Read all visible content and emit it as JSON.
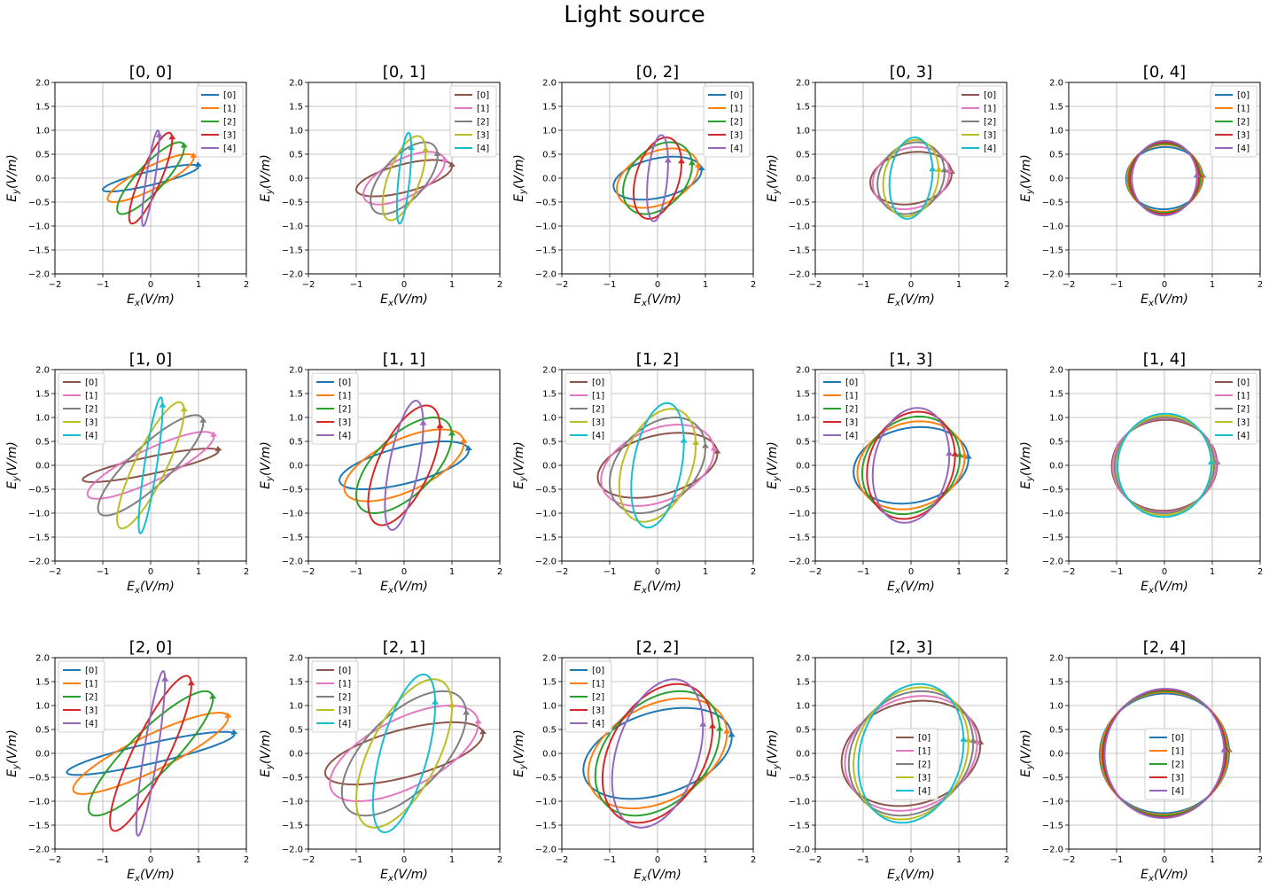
{
  "figure": {
    "suptitle": "Light source",
    "xlabel_base": "E",
    "xlabel_sub": "x",
    "xlabel_unit": "(V/m)",
    "ylabel_base": "E",
    "ylabel_sub": "y",
    "ylabel_unit": "(V/m)"
  },
  "colors": {
    "[0]": "#1f77b4",
    "[1]": "#ff7f0e",
    "[2]": "#2ca02c",
    "[3]": "#d62728",
    "[4]": "#9467bd",
    "alt[0]": "#8c564b",
    "alt[1]": "#e377c2",
    "alt[2]": "#7f7f7f",
    "alt[3]": "#bcbd22",
    "alt[4]": "#17becf"
  },
  "chart_data": [
    {
      "type": "line",
      "title": "[0, 0]",
      "xlabel": "E_x(V/m)",
      "ylabel": "E_y(V/m)",
      "xlim": [
        -2,
        2
      ],
      "ylim": [
        -2,
        2
      ],
      "xticks": [
        -2,
        -1,
        0,
        1,
        2
      ],
      "yticks": [
        "2.0",
        "1.5",
        "1.0",
        "0.5",
        "0.0",
        "-0.5",
        "-1.0",
        "-1.5",
        "-2.0"
      ],
      "grid": true,
      "legend": "upper right",
      "palette": "default",
      "series": [
        {
          "name": "[0]",
          "ax": 1.0,
          "ay": 0.28,
          "delta": 0.55
        },
        {
          "name": "[1]",
          "ax": 0.9,
          "ay": 0.5,
          "delta": 0.55
        },
        {
          "name": "[2]",
          "ax": 0.7,
          "ay": 0.75,
          "delta": 0.55
        },
        {
          "name": "[3]",
          "ax": 0.45,
          "ay": 0.95,
          "delta": 0.55
        },
        {
          "name": "[4]",
          "ax": 0.18,
          "ay": 1.0,
          "delta": 0.55
        }
      ]
    },
    {
      "type": "line",
      "title": "[0, 1]",
      "xlabel": "E_x(V/m)",
      "ylabel": "E_y(V/m)",
      "xlim": [
        -2,
        2
      ],
      "ylim": [
        -2,
        2
      ],
      "xticks": [
        -2,
        -1,
        0,
        1,
        2
      ],
      "yticks": [
        "2.0",
        "1.5",
        "1.0",
        "0.5",
        "0.0",
        "-0.5",
        "-1.0",
        "-1.5",
        "-2.0"
      ],
      "grid": true,
      "legend": "upper right",
      "palette": "alt",
      "series": [
        {
          "name": "[0]",
          "ax": 1.0,
          "ay": 0.38,
          "delta": 0.9
        },
        {
          "name": "[1]",
          "ax": 0.85,
          "ay": 0.55,
          "delta": 0.9
        },
        {
          "name": "[2]",
          "ax": 0.7,
          "ay": 0.75,
          "delta": 0.9
        },
        {
          "name": "[3]",
          "ax": 0.45,
          "ay": 0.88,
          "delta": 0.9
        },
        {
          "name": "[4]",
          "ax": 0.15,
          "ay": 0.95,
          "delta": 0.9
        }
      ]
    },
    {
      "type": "line",
      "title": "[0, 2]",
      "xlabel": "E_x(V/m)",
      "ylabel": "E_y(V/m)",
      "xlim": [
        -2,
        2
      ],
      "ylim": [
        -2,
        2
      ],
      "xticks": [
        -2,
        -1,
        0,
        1,
        2
      ],
      "yticks": [
        "2.0",
        "1.5",
        "1.0",
        "0.5",
        "0.0",
        "-0.5",
        "-1.0",
        "-1.5",
        "-2.0"
      ],
      "grid": true,
      "legend": "upper right",
      "palette": "default",
      "series": [
        {
          "name": "[0]",
          "ax": 0.92,
          "ay": 0.45,
          "delta": 1.2
        },
        {
          "name": "[1]",
          "ax": 0.85,
          "ay": 0.62,
          "delta": 1.2
        },
        {
          "name": "[2]",
          "ax": 0.72,
          "ay": 0.75,
          "delta": 1.2
        },
        {
          "name": "[3]",
          "ax": 0.5,
          "ay": 0.85,
          "delta": 1.2
        },
        {
          "name": "[4]",
          "ax": 0.22,
          "ay": 0.9,
          "delta": 1.2
        }
      ]
    },
    {
      "type": "line",
      "title": "[0, 3]",
      "xlabel": "E_x(V/m)",
      "ylabel": "E_y(V/m)",
      "xlim": [
        -2,
        2
      ],
      "ylim": [
        -2,
        2
      ],
      "xticks": [
        -2,
        -1,
        0,
        1,
        2
      ],
      "yticks": [
        "2.0",
        "1.5",
        "1.0",
        "0.5",
        "0.0",
        "-0.5",
        "-1.0",
        "-1.5",
        "-2.0"
      ],
      "grid": true,
      "legend": "upper right",
      "palette": "alt",
      "series": [
        {
          "name": "[0]",
          "ax": 0.85,
          "ay": 0.55,
          "delta": 1.4
        },
        {
          "name": "[1]",
          "ax": 0.8,
          "ay": 0.65,
          "delta": 1.4
        },
        {
          "name": "[2]",
          "ax": 0.7,
          "ay": 0.75,
          "delta": 1.4
        },
        {
          "name": "[3]",
          "ax": 0.58,
          "ay": 0.8,
          "delta": 1.4
        },
        {
          "name": "[4]",
          "ax": 0.45,
          "ay": 0.85,
          "delta": 1.4
        }
      ]
    },
    {
      "type": "line",
      "title": "[0, 4]",
      "xlabel": "E_x(V/m)",
      "ylabel": "E_y(V/m)",
      "xlim": [
        -2,
        2
      ],
      "ylim": [
        -2,
        2
      ],
      "xticks": [
        -2,
        -1,
        0,
        1,
        2
      ],
      "yticks": [
        "2.0",
        "1.5",
        "1.0",
        "0.5",
        "0.0",
        "-0.5",
        "-1.0",
        "-1.5",
        "-2.0"
      ],
      "grid": true,
      "legend": "upper right",
      "palette": "default",
      "series": [
        {
          "name": "[0]",
          "ax": 0.8,
          "ay": 0.65,
          "delta": 1.55
        },
        {
          "name": "[1]",
          "ax": 0.78,
          "ay": 0.7,
          "delta": 1.55
        },
        {
          "name": "[2]",
          "ax": 0.75,
          "ay": 0.72,
          "delta": 1.55
        },
        {
          "name": "[3]",
          "ax": 0.72,
          "ay": 0.75,
          "delta": 1.55
        },
        {
          "name": "[4]",
          "ax": 0.68,
          "ay": 0.78,
          "delta": 1.55
        }
      ]
    },
    {
      "type": "line",
      "title": "[1, 0]",
      "xlabel": "E_x(V/m)",
      "ylabel": "E_y(V/m)",
      "xlim": [
        -2,
        2
      ],
      "ylim": [
        -2,
        2
      ],
      "xticks": [
        -2,
        -1,
        0,
        1,
        2
      ],
      "yticks": [
        "2.0",
        "1.5",
        "1.0",
        "0.5",
        "0.0",
        "-0.5",
        "-1.0",
        "-1.5",
        "-2.0"
      ],
      "grid": true,
      "legend": "upper left",
      "palette": "alt",
      "series": [
        {
          "name": "[0]",
          "ax": 1.42,
          "ay": 0.35,
          "delta": 0.55
        },
        {
          "name": "[1]",
          "ax": 1.32,
          "ay": 0.7,
          "delta": 0.55
        },
        {
          "name": "[2]",
          "ax": 1.1,
          "ay": 1.05,
          "delta": 0.55
        },
        {
          "name": "[3]",
          "ax": 0.7,
          "ay": 1.32,
          "delta": 0.55
        },
        {
          "name": "[4]",
          "ax": 0.25,
          "ay": 1.42,
          "delta": 0.55
        }
      ]
    },
    {
      "type": "line",
      "title": "[1, 1]",
      "xlabel": "E_x(V/m)",
      "ylabel": "E_y(V/m)",
      "xlim": [
        -2,
        2
      ],
      "ylim": [
        -2,
        2
      ],
      "xticks": [
        -2,
        -1,
        0,
        1,
        2
      ],
      "yticks": [
        "2.0",
        "1.5",
        "1.0",
        "0.5",
        "0.0",
        "-0.5",
        "-1.0",
        "-1.5",
        "-2.0"
      ],
      "grid": true,
      "legend": "upper left",
      "palette": "default",
      "series": [
        {
          "name": "[0]",
          "ax": 1.35,
          "ay": 0.5,
          "delta": 0.9
        },
        {
          "name": "[1]",
          "ax": 1.25,
          "ay": 0.75,
          "delta": 0.9
        },
        {
          "name": "[2]",
          "ax": 1.0,
          "ay": 1.0,
          "delta": 0.9
        },
        {
          "name": "[3]",
          "ax": 0.75,
          "ay": 1.25,
          "delta": 0.9
        },
        {
          "name": "[4]",
          "ax": 0.4,
          "ay": 1.35,
          "delta": 0.9
        }
      ]
    },
    {
      "type": "line",
      "title": "[1, 2]",
      "xlabel": "E_x(V/m)",
      "ylabel": "E_y(V/m)",
      "xlim": [
        -2,
        2
      ],
      "ylim": [
        -2,
        2
      ],
      "xticks": [
        -2,
        -1,
        0,
        1,
        2
      ],
      "yticks": [
        "2.0",
        "1.5",
        "1.0",
        "0.5",
        "0.0",
        "-0.5",
        "-1.0",
        "-1.5",
        "-2.0"
      ],
      "grid": true,
      "legend": "upper left",
      "palette": "alt",
      "series": [
        {
          "name": "[0]",
          "ax": 1.25,
          "ay": 0.68,
          "delta": 1.2
        },
        {
          "name": "[1]",
          "ax": 1.18,
          "ay": 0.85,
          "delta": 1.2
        },
        {
          "name": "[2]",
          "ax": 1.0,
          "ay": 1.0,
          "delta": 1.2
        },
        {
          "name": "[3]",
          "ax": 0.8,
          "ay": 1.18,
          "delta": 1.2
        },
        {
          "name": "[4]",
          "ax": 0.55,
          "ay": 1.3,
          "delta": 1.2
        }
      ]
    },
    {
      "type": "line",
      "title": "[1, 3]",
      "xlabel": "E_x(V/m)",
      "ylabel": "E_y(V/m)",
      "xlim": [
        -2,
        2
      ],
      "ylim": [
        -2,
        2
      ],
      "xticks": [
        -2,
        -1,
        0,
        1,
        2
      ],
      "yticks": [
        "2.0",
        "1.5",
        "1.0",
        "0.5",
        "0.0",
        "-0.5",
        "-1.0",
        "-1.5",
        "-2.0"
      ],
      "grid": true,
      "legend": "upper left",
      "palette": "default",
      "series": [
        {
          "name": "[0]",
          "ax": 1.2,
          "ay": 0.8,
          "delta": 1.4
        },
        {
          "name": "[1]",
          "ax": 1.12,
          "ay": 0.92,
          "delta": 1.4
        },
        {
          "name": "[2]",
          "ax": 1.02,
          "ay": 1.02,
          "delta": 1.4
        },
        {
          "name": "[3]",
          "ax": 0.92,
          "ay": 1.12,
          "delta": 1.4
        },
        {
          "name": "[4]",
          "ax": 0.8,
          "ay": 1.2,
          "delta": 1.4
        }
      ]
    },
    {
      "type": "line",
      "title": "[1, 4]",
      "xlabel": "E_x(V/m)",
      "ylabel": "E_y(V/m)",
      "xlim": [
        -2,
        2
      ],
      "ylim": [
        -2,
        2
      ],
      "xticks": [
        -2,
        -1,
        0,
        1,
        2
      ],
      "yticks": [
        "2.0",
        "1.5",
        "1.0",
        "0.5",
        "0.0",
        "-0.5",
        "-1.0",
        "-1.5",
        "-2.0"
      ],
      "grid": true,
      "legend": "upper right",
      "palette": "alt",
      "series": [
        {
          "name": "[0]",
          "ax": 1.1,
          "ay": 0.95,
          "delta": 1.55
        },
        {
          "name": "[1]",
          "ax": 1.08,
          "ay": 0.98,
          "delta": 1.55
        },
        {
          "name": "[2]",
          "ax": 1.04,
          "ay": 1.0,
          "delta": 1.55
        },
        {
          "name": "[3]",
          "ax": 1.0,
          "ay": 1.04,
          "delta": 1.55
        },
        {
          "name": "[4]",
          "ax": 0.98,
          "ay": 1.08,
          "delta": 1.55
        }
      ]
    },
    {
      "type": "line",
      "title": "[2, 0]",
      "xlabel": "E_x(V/m)",
      "ylabel": "E_y(V/m)",
      "xlim": [
        -2,
        2
      ],
      "ylim": [
        -2,
        2
      ],
      "xticks": [
        -2,
        -1,
        0,
        1,
        2
      ],
      "yticks": [
        "2.0",
        "1.5",
        "1.0",
        "0.5",
        "0.0",
        "-0.5",
        "-1.0",
        "-1.5",
        "-2.0"
      ],
      "grid": true,
      "legend": "upper left",
      "palette": "default",
      "series": [
        {
          "name": "[0]",
          "ax": 1.75,
          "ay": 0.45,
          "delta": 0.5
        },
        {
          "name": "[1]",
          "ax": 1.62,
          "ay": 0.85,
          "delta": 0.5
        },
        {
          "name": "[2]",
          "ax": 1.3,
          "ay": 1.3,
          "delta": 0.5
        },
        {
          "name": "[3]",
          "ax": 0.85,
          "ay": 1.62,
          "delta": 0.5
        },
        {
          "name": "[4]",
          "ax": 0.3,
          "ay": 1.72,
          "delta": 0.5
        }
      ]
    },
    {
      "type": "line",
      "title": "[2, 1]",
      "xlabel": "E_x(V/m)",
      "ylabel": "E_y(V/m)",
      "xlim": [
        -2,
        2
      ],
      "ylim": [
        -2,
        2
      ],
      "xticks": [
        -2,
        -1,
        0,
        1,
        2
      ],
      "yticks": [
        "2.0",
        "1.5",
        "1.0",
        "0.5",
        "0.0",
        "-0.5",
        "-1.0",
        "-1.5",
        "-2.0"
      ],
      "grid": true,
      "legend": "upper left",
      "palette": "alt",
      "series": [
        {
          "name": "[0]",
          "ax": 1.65,
          "ay": 0.65,
          "delta": 0.9
        },
        {
          "name": "[1]",
          "ax": 1.55,
          "ay": 1.0,
          "delta": 0.9
        },
        {
          "name": "[2]",
          "ax": 1.3,
          "ay": 1.3,
          "delta": 0.9
        },
        {
          "name": "[3]",
          "ax": 1.0,
          "ay": 1.55,
          "delta": 0.9
        },
        {
          "name": "[4]",
          "ax": 0.65,
          "ay": 1.65,
          "delta": 0.9
        }
      ]
    },
    {
      "type": "line",
      "title": "[2, 2]",
      "xlabel": "E_x(V/m)",
      "ylabel": "E_y(V/m)",
      "xlim": [
        -2,
        2
      ],
      "ylim": [
        -2,
        2
      ],
      "xticks": [
        -2,
        -1,
        0,
        1,
        2
      ],
      "yticks": [
        "2.0",
        "1.5",
        "1.0",
        "0.5",
        "0.0",
        "-0.5",
        "-1.0",
        "-1.5",
        "-2.0"
      ],
      "grid": true,
      "legend": "upper left",
      "palette": "default",
      "series": [
        {
          "name": "[0]",
          "ax": 1.55,
          "ay": 0.95,
          "delta": 1.2
        },
        {
          "name": "[1]",
          "ax": 1.45,
          "ay": 1.15,
          "delta": 1.2
        },
        {
          "name": "[2]",
          "ax": 1.3,
          "ay": 1.3,
          "delta": 1.2
        },
        {
          "name": "[3]",
          "ax": 1.15,
          "ay": 1.45,
          "delta": 1.2
        },
        {
          "name": "[4]",
          "ax": 0.95,
          "ay": 1.55,
          "delta": 1.2
        }
      ]
    },
    {
      "type": "line",
      "title": "[2, 3]",
      "xlabel": "E_x(V/m)",
      "ylabel": "E_y(V/m)",
      "xlim": [
        -2,
        2
      ],
      "ylim": [
        -2,
        2
      ],
      "xticks": [
        -2,
        -1,
        0,
        1,
        2
      ],
      "yticks": [
        "2.0",
        "1.5",
        "1.0",
        "0.5",
        "0.0",
        "-0.5",
        "-1.0",
        "-1.5",
        "-2.0"
      ],
      "grid": true,
      "legend": "center",
      "palette": "alt",
      "series": [
        {
          "name": "[0]",
          "ax": 1.45,
          "ay": 1.1,
          "delta": 1.4
        },
        {
          "name": "[1]",
          "ax": 1.38,
          "ay": 1.2,
          "delta": 1.4
        },
        {
          "name": "[2]",
          "ax": 1.3,
          "ay": 1.3,
          "delta": 1.4
        },
        {
          "name": "[3]",
          "ax": 1.2,
          "ay": 1.38,
          "delta": 1.4
        },
        {
          "name": "[4]",
          "ax": 1.1,
          "ay": 1.45,
          "delta": 1.4
        }
      ]
    },
    {
      "type": "line",
      "title": "[2, 4]",
      "xlabel": "E_x(V/m)",
      "ylabel": "E_y(V/m)",
      "xlim": [
        -2,
        2
      ],
      "ylim": [
        -2,
        2
      ],
      "xticks": [
        -2,
        -1,
        0,
        1,
        2
      ],
      "yticks": [
        "2.0",
        "1.5",
        "1.0",
        "0.5",
        "0.0",
        "-0.5",
        "-1.0",
        "-1.5",
        "-2.0"
      ],
      "grid": true,
      "legend": "center",
      "palette": "default",
      "series": [
        {
          "name": "[0]",
          "ax": 1.35,
          "ay": 1.25,
          "delta": 1.55
        },
        {
          "name": "[1]",
          "ax": 1.33,
          "ay": 1.28,
          "delta": 1.55
        },
        {
          "name": "[2]",
          "ax": 1.3,
          "ay": 1.3,
          "delta": 1.55
        },
        {
          "name": "[3]",
          "ax": 1.28,
          "ay": 1.33,
          "delta": 1.55
        },
        {
          "name": "[4]",
          "ax": 1.25,
          "ay": 1.35,
          "delta": 1.55
        }
      ]
    }
  ]
}
